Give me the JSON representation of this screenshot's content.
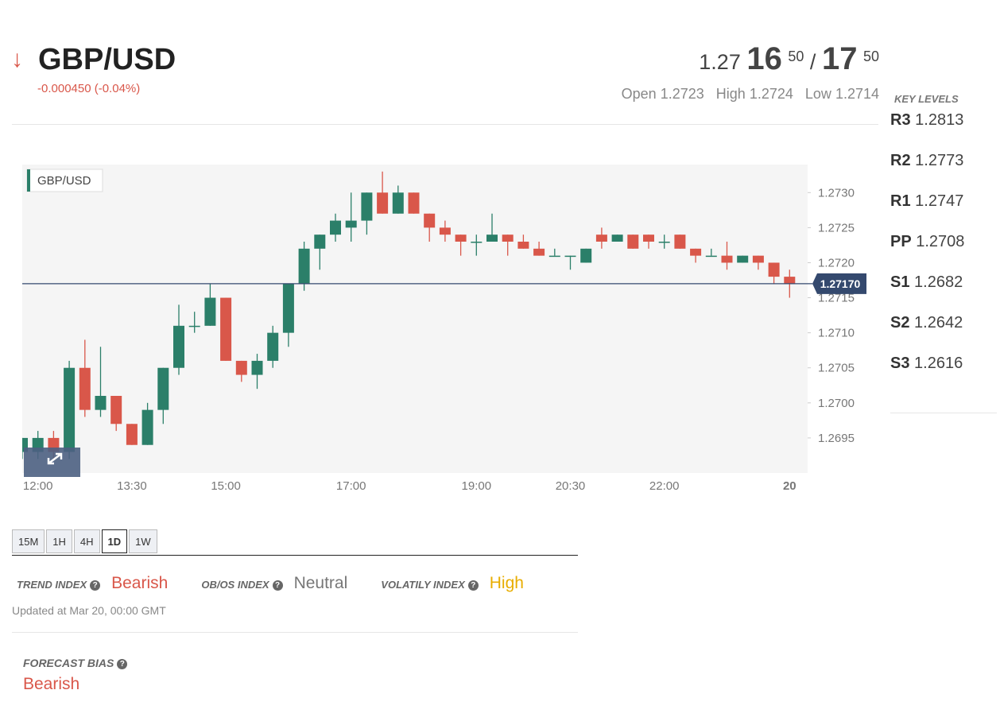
{
  "header": {
    "symbol": "GBP/USD",
    "change": "-0.000450 (-0.04%)",
    "bid_prefix": "1.27",
    "bid_big": "16",
    "bid_small": "50",
    "separator": "/",
    "ask_big": "17",
    "ask_small": "50",
    "open_label": "Open",
    "open": "1.2723",
    "high_label": "High",
    "high": "1.2724",
    "low_label": "Low",
    "low": "1.2714"
  },
  "key_levels": {
    "title": "KEY LEVELS",
    "levels": [
      {
        "name": "R3",
        "value": "1.2813"
      },
      {
        "name": "R2",
        "value": "1.2773"
      },
      {
        "name": "R1",
        "value": "1.2747"
      },
      {
        "name": "PP",
        "value": "1.2708"
      },
      {
        "name": "S1",
        "value": "1.2682"
      },
      {
        "name": "S2",
        "value": "1.2642"
      },
      {
        "name": "S3",
        "value": "1.2616"
      }
    ]
  },
  "chart_data": {
    "type": "candlestick",
    "categories": [
      null,
      "12:00",
      null,
      null,
      null,
      null,
      null,
      "13:30",
      null,
      null,
      null,
      null,
      null,
      "15:00",
      null,
      null,
      null,
      null,
      null,
      null,
      null,
      "17:00",
      null,
      null,
      null,
      null,
      null,
      null,
      null,
      "19:00",
      null,
      null,
      null,
      null,
      null,
      "20:30",
      null,
      null,
      null,
      null,
      null,
      "22:00",
      null,
      null,
      null,
      null,
      null,
      null,
      null,
      "20"
    ],
    "series": [
      {
        "name": "GBP/USD",
        "up_color": "#2b7f69",
        "down_color": "#d9574a",
        "open": [
          1.2693,
          1.2693,
          1.2695,
          1.2693,
          1.2705,
          1.2699,
          1.2701,
          1.2697,
          1.2694,
          1.2699,
          1.2705,
          1.2711,
          1.2711,
          1.2715,
          1.2706,
          1.2704,
          1.2706,
          1.271,
          1.2717,
          1.2722,
          1.2724,
          1.2725,
          1.2726,
          1.273,
          1.2727,
          1.273,
          1.2727,
          1.2725,
          1.2724,
          1.2723,
          1.2723,
          1.2724,
          1.2723,
          1.2722,
          1.2721,
          1.2721,
          1.272,
          1.2724,
          1.2723,
          1.2724,
          1.2724,
          1.2723,
          1.2724,
          1.2722,
          1.2721,
          1.2721,
          1.272,
          1.2721,
          1.272,
          1.2718
        ],
        "high": [
          1.2695,
          1.2696,
          1.2696,
          1.2706,
          1.2709,
          1.2708,
          1.2701,
          1.2697,
          1.27,
          1.2705,
          1.2714,
          1.2713,
          1.2717,
          1.2715,
          1.2706,
          1.2707,
          1.2711,
          1.2717,
          1.2723,
          1.2724,
          1.2727,
          1.273,
          1.273,
          1.2733,
          1.2731,
          1.273,
          1.2727,
          1.2726,
          1.2724,
          1.2724,
          1.2727,
          1.2724,
          1.2724,
          1.2723,
          1.2722,
          1.2721,
          1.2722,
          1.2725,
          1.2724,
          1.2724,
          1.2724,
          1.2724,
          1.2724,
          1.2722,
          1.2722,
          1.2723,
          1.2721,
          1.2721,
          1.272,
          1.2719
        ],
        "low": [
          1.2692,
          1.2692,
          1.2692,
          1.2692,
          1.2698,
          1.2698,
          1.2696,
          1.2694,
          1.2694,
          1.2697,
          1.2704,
          1.271,
          1.2711,
          1.2706,
          1.2703,
          1.2702,
          1.2705,
          1.2708,
          1.2716,
          1.2719,
          1.2723,
          1.2723,
          1.2724,
          1.2727,
          1.2727,
          1.2727,
          1.2723,
          1.2723,
          1.2721,
          1.2721,
          1.2723,
          1.2721,
          1.2722,
          1.2721,
          1.2721,
          1.2719,
          1.272,
          1.2722,
          1.2723,
          1.2722,
          1.2722,
          1.2722,
          1.2722,
          1.272,
          1.2721,
          1.2719,
          1.272,
          1.2719,
          1.2717,
          1.2715
        ],
        "close": [
          1.2695,
          1.2695,
          1.2693,
          1.2705,
          1.2699,
          1.2701,
          1.2697,
          1.2694,
          1.2699,
          1.2705,
          1.2711,
          1.2711,
          1.2715,
          1.2706,
          1.2704,
          1.2706,
          1.271,
          1.2717,
          1.2722,
          1.2724,
          1.2726,
          1.2726,
          1.273,
          1.2727,
          1.273,
          1.2727,
          1.2725,
          1.2724,
          1.2723,
          1.2723,
          1.2724,
          1.2723,
          1.2722,
          1.2721,
          1.2721,
          1.2721,
          1.2722,
          1.2723,
          1.2724,
          1.2722,
          1.2723,
          1.2723,
          1.2722,
          1.2721,
          1.2721,
          1.272,
          1.2721,
          1.272,
          1.2718,
          1.2717
        ]
      }
    ],
    "ylim": [
      1.269,
      1.2734
    ],
    "yticks": [
      1.2695,
      {
        "value": 1.27,
        "label": "1.2700"
      },
      1.2705,
      {
        "value": 1.271,
        "label": "1.2710"
      },
      1.2715,
      {
        "value": 1.272,
        "label": "1.2720"
      },
      1.2725,
      {
        "value": 1.273,
        "label": "1.2730"
      }
    ],
    "current_price": {
      "value": 1.2717,
      "label": "1.27170"
    },
    "line_color": "#34496e"
  },
  "timeframes": [
    "15M",
    "1H",
    "4H",
    "1D",
    "1W"
  ],
  "indices": [
    {
      "label": "TREND INDEX",
      "value": "Bearish"
    },
    {
      "label": "OB/OS INDEX",
      "value": "Neutral"
    },
    {
      "label": "VOLATILY INDEX",
      "value": "High"
    }
  ],
  "updated": "Updated at Mar 20, 00:00 GMT",
  "forecast": {
    "label": "FORECAST BIAS",
    "value": "Bearish"
  }
}
